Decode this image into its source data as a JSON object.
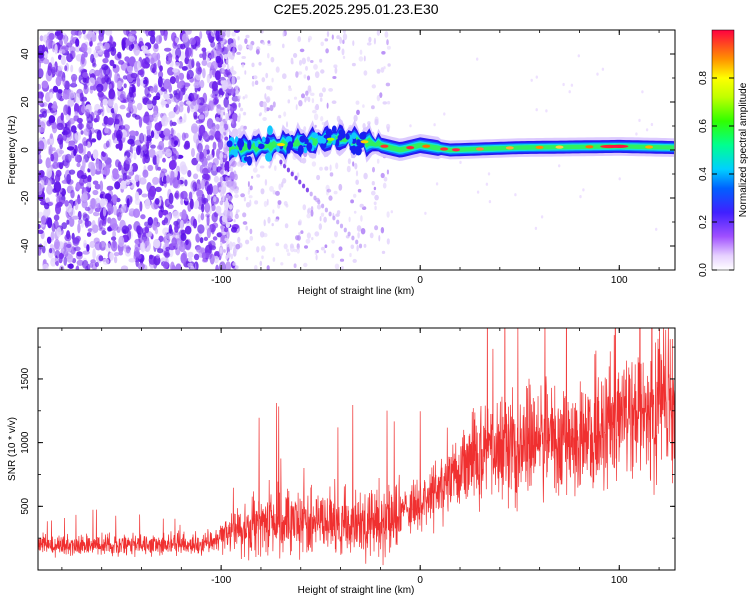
{
  "title": "C2E5.2025.295.01.23.E30",
  "chart_data": [
    {
      "type": "heatmap",
      "name": "spectrogram",
      "xlabel": "Height of straight line (km)",
      "ylabel": "Frequency (Hz)",
      "xlim": [
        -192,
        128
      ],
      "ylim": [
        -50,
        50
      ],
      "xticks": [
        -100,
        0,
        100
      ],
      "yticks": [
        -40,
        -20,
        0,
        20,
        40
      ],
      "colorbar": {
        "label": "Normalized spectral amplitude",
        "range": [
          0,
          1
        ],
        "ticks": [
          0.0,
          0.2,
          0.4,
          0.6,
          0.8
        ],
        "tick_labels": [
          "0.0",
          "0.2",
          "0.4",
          "0.6",
          "0.8"
        ]
      },
      "ridge_track": [
        {
          "x": -95,
          "f": 0.5
        },
        {
          "x": -80,
          "f": 1.5
        },
        {
          "x": -60,
          "f": 3
        },
        {
          "x": -40,
          "f": 5
        },
        {
          "x": -25,
          "f": 3
        },
        {
          "x": -10,
          "f": 0
        },
        {
          "x": 0,
          "f": 2
        },
        {
          "x": 15,
          "f": 0
        },
        {
          "x": 50,
          "f": 1
        },
        {
          "x": 100,
          "f": 1.5
        },
        {
          "x": 128,
          "f": 1
        }
      ]
    },
    {
      "type": "line",
      "name": "snr",
      "xlabel": "Height of straight line (km)",
      "ylabel": "SNR (10 * v/v)",
      "xlim": [
        -192,
        128
      ],
      "ylim": [
        0,
        1900
      ],
      "xticks": [
        -100,
        0,
        100
      ],
      "yticks": [
        500,
        1000,
        1500
      ],
      "series": [
        {
          "name": "SNR",
          "color": "#f03030",
          "trend": [
            {
              "x": -192,
              "y": 190
            },
            {
              "x": -110,
              "y": 200
            },
            {
              "x": -90,
              "y": 330
            },
            {
              "x": -60,
              "y": 380
            },
            {
              "x": -20,
              "y": 360
            },
            {
              "x": 0,
              "y": 520
            },
            {
              "x": 20,
              "y": 800
            },
            {
              "x": 40,
              "y": 950
            },
            {
              "x": 80,
              "y": 1050
            },
            {
              "x": 100,
              "y": 1150
            },
            {
              "x": 128,
              "y": 1380
            }
          ]
        }
      ]
    }
  ]
}
